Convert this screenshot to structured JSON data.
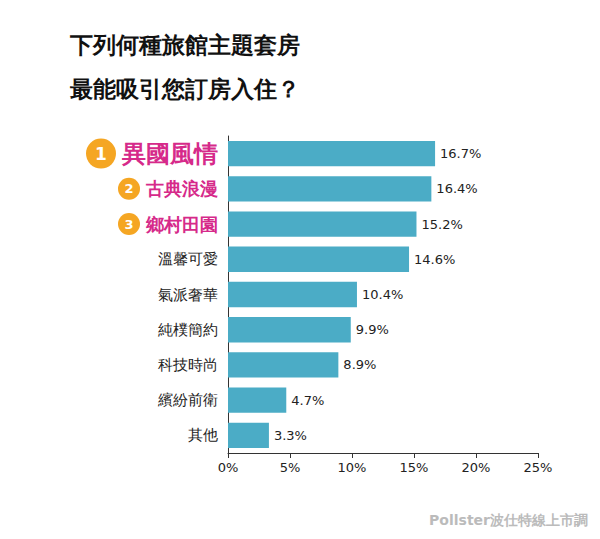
{
  "chart_data": {
    "type": "bar",
    "orientation": "horizontal",
    "title": "下列何種旅館主題套房\n最能吸引您訂房入住？",
    "annotations": [
      "Pollster波仕特線上市調"
    ],
    "categories": [
      "異國風情",
      "古典浪漫",
      "鄉村田園",
      "溫馨可愛",
      "氣派奢華",
      "純樸簡約",
      "科技時尚",
      "繽紛前衛",
      "其他"
    ],
    "ranks": [
      1,
      2,
      3,
      null,
      null,
      null,
      null,
      null,
      null
    ],
    "values": [
      16.7,
      16.4,
      15.2,
      14.6,
      10.4,
      9.9,
      8.9,
      4.7,
      3.3
    ],
    "value_labels": [
      "16.7%",
      "16.4%",
      "15.2%",
      "14.6%",
      "10.4%",
      "9.9%",
      "8.9%",
      "4.7%",
      "3.3%"
    ],
    "color": "#4bacc6",
    "data_labels": true,
    "grid": false,
    "xlim": [
      0,
      25
    ],
    "xticks": [
      {
        "value": 0,
        "label": "0%"
      },
      {
        "value": 5,
        "label": "5%"
      },
      {
        "value": 10,
        "label": "10%"
      },
      {
        "value": 15,
        "label": "15%"
      },
      {
        "value": 20,
        "label": "20%"
      },
      {
        "value": 25,
        "label": "25%"
      }
    ]
  }
}
